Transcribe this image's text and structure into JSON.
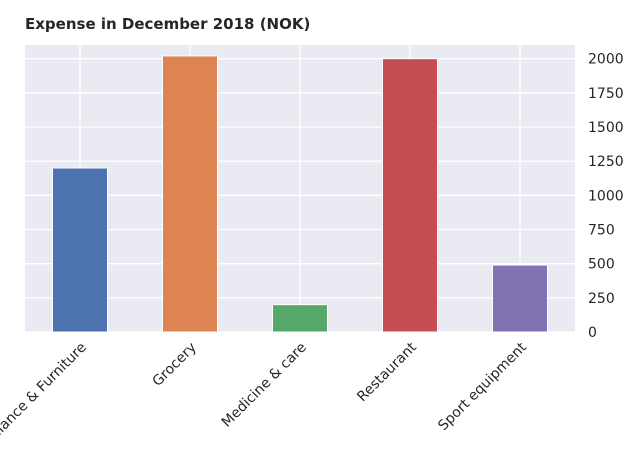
{
  "chart_data": {
    "type": "bar",
    "title": "Expense in December 2018 (NOK)",
    "xlabel": "",
    "ylabel": "",
    "categories": [
      "Appliance & Furniture",
      "Grocery",
      "Medicine & care",
      "Restaurant",
      "Sport equipment"
    ],
    "values": [
      1200,
      2020,
      200,
      2000,
      490
    ],
    "colors": [
      "#4c72b0",
      "#dd8452",
      "#55a868",
      "#c44e52",
      "#8172b3"
    ],
    "ylim": [
      0,
      2100
    ],
    "yticks": [
      0,
      250,
      500,
      750,
      1000,
      1250,
      1500,
      1750,
      2000
    ],
    "y_axis_side": "right",
    "grid": true,
    "background": "#eaeaf2"
  }
}
